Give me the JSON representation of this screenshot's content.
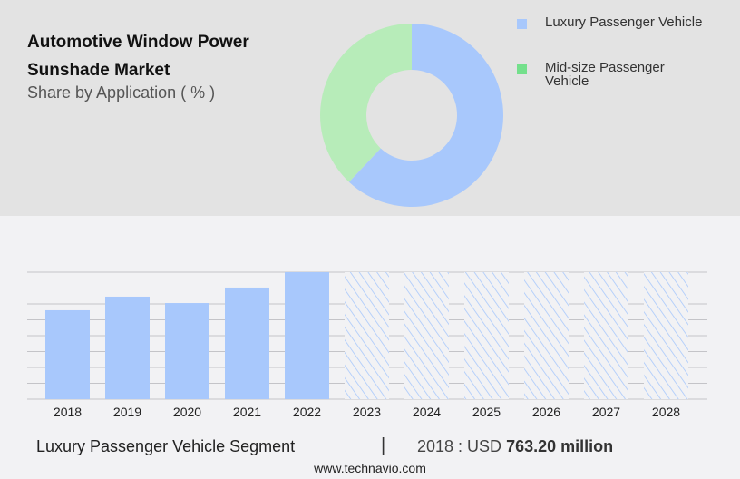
{
  "header": {
    "title": "Automotive Window Power Sunshade Market",
    "subtitle": "Share by Application ( % )"
  },
  "chart_data": [
    {
      "type": "pie",
      "variant": "donut",
      "title": "Share by Application ( % )",
      "slices": [
        {
          "name": "Luxury Passenger Vehicle",
          "value": 62,
          "color": "#a8c8fc"
        },
        {
          "name": "Mid-size Passenger Vehicle",
          "value": 38,
          "color": "#b7ecb9"
        }
      ],
      "legend_colors": [
        "#a8c8fc",
        "#74e08c"
      ],
      "legend": "right"
    },
    {
      "type": "bar",
      "categories": [
        "2018",
        "2019",
        "2020",
        "2021",
        "2022",
        "2023",
        "2024",
        "2025",
        "2026",
        "2027",
        "2028"
      ],
      "values": [
        763.2,
        880,
        825,
        958,
        1090,
        null,
        null,
        null,
        null,
        null,
        null
      ],
      "forecast_categories": [
        "2023",
        "2024",
        "2025",
        "2026",
        "2027",
        "2028"
      ],
      "forecast_style": "hatched",
      "color": "#a8c8fc",
      "ylim": [
        0,
        1090
      ],
      "grid": true,
      "ylabel": "",
      "xlabel": ""
    }
  ],
  "footer": {
    "segment": "Luxury Passenger Vehicle Segment",
    "separator": "|",
    "value_prefix": "2018 : USD",
    "value": "763.20 million",
    "site": "www.technavio.com"
  }
}
